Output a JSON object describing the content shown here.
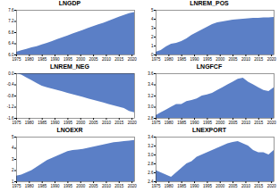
{
  "chart_data": [
    {
      "type": "area",
      "title": "LNGDP",
      "color": "#5b7fc6",
      "x": [
        1975,
        1977,
        1979,
        1981,
        1983,
        1985,
        1987,
        1989,
        1991,
        1993,
        1995,
        1997,
        1999,
        2001,
        2003,
        2005,
        2007,
        2009,
        2011,
        2013,
        2015,
        2017,
        2019,
        2021
      ],
      "values": [
        6.1,
        6.15,
        6.2,
        6.26,
        6.3,
        6.36,
        6.42,
        6.48,
        6.55,
        6.62,
        6.68,
        6.75,
        6.82,
        6.88,
        6.95,
        7.02,
        7.08,
        7.14,
        7.21,
        7.28,
        7.35,
        7.42,
        7.48,
        7.52
      ],
      "xlim": [
        1975,
        2021
      ],
      "xticks": [
        1975,
        1980,
        1985,
        1990,
        1995,
        2000,
        2005,
        2010,
        2015,
        2020
      ],
      "ylim": [
        6.0,
        7.6
      ],
      "yticks": [
        {
          "value": 6,
          "label": "6.0"
        },
        6.4,
        6.8,
        7.2,
        7.6
      ]
    },
    {
      "type": "area",
      "title": "LNREM_POS",
      "color": "#5b7fc6",
      "x": [
        1975,
        1977,
        1979,
        1981,
        1983,
        1985,
        1987,
        1989,
        1991,
        1993,
        1995,
        1997,
        1999,
        2001,
        2003,
        2005,
        2007,
        2009,
        2011,
        2013,
        2015,
        2017,
        2019,
        2021
      ],
      "values": [
        0.3,
        0.5,
        0.9,
        1.2,
        1.3,
        1.5,
        1.8,
        2.2,
        2.5,
        2.8,
        3.1,
        3.4,
        3.6,
        3.7,
        3.8,
        3.9,
        3.95,
        4.0,
        4.05,
        4.1,
        4.1,
        4.15,
        4.15,
        4.2
      ],
      "xlim": [
        1975,
        2021
      ],
      "xticks": [
        1975,
        1980,
        1985,
        1990,
        1995,
        2000,
        2005,
        2010,
        2015,
        2020
      ],
      "ylim": [
        0,
        5
      ],
      "yticks": [
        0,
        1,
        2,
        3,
        4,
        5
      ]
    },
    {
      "type": "area",
      "title": "LNREM_NEG",
      "color": "#5b7fc6",
      "x": [
        1975,
        1977,
        1979,
        1981,
        1983,
        1985,
        1987,
        1989,
        1991,
        1993,
        1995,
        1997,
        1999,
        2001,
        2003,
        2005,
        2007,
        2009,
        2011,
        2013,
        2015,
        2017,
        2019,
        2021
      ],
      "values": [
        0,
        -0.05,
        -0.15,
        -0.25,
        -0.35,
        -0.45,
        -0.5,
        -0.55,
        -0.6,
        -0.65,
        -0.7,
        -0.75,
        -0.8,
        -0.85,
        -0.9,
        -0.95,
        -1.0,
        -1.05,
        -1.1,
        -1.15,
        -1.2,
        -1.25,
        -1.35,
        -1.4
      ],
      "xlim": [
        1975,
        2021
      ],
      "xticks": [
        1975,
        1980,
        1985,
        1990,
        1995,
        2000,
        2005,
        2010,
        2015,
        2020
      ],
      "ylim": [
        -1.6,
        0
      ],
      "yticks": [
        -1.6,
        -1.2,
        -0.8,
        -0.4,
        {
          "value": 0,
          "label": "0.0"
        }
      ]
    },
    {
      "type": "area",
      "title": "LNGFCF",
      "color": "#5b7fc6",
      "x": [
        1975,
        1977,
        1979,
        1981,
        1983,
        1985,
        1987,
        1989,
        1991,
        1993,
        1995,
        1997,
        1999,
        2001,
        2003,
        2005,
        2007,
        2009,
        2011,
        2013,
        2015,
        2017,
        2019,
        2021
      ],
      "values": [
        2.85,
        2.9,
        2.95,
        3.0,
        3.05,
        3.05,
        3.1,
        3.12,
        3.15,
        3.2,
        3.22,
        3.25,
        3.3,
        3.35,
        3.4,
        3.45,
        3.5,
        3.52,
        3.45,
        3.4,
        3.35,
        3.3,
        3.28,
        3.35
      ],
      "xlim": [
        1975,
        2021
      ],
      "xticks": [
        1975,
        1980,
        1985,
        1990,
        1995,
        2000,
        2005,
        2010,
        2015,
        2020
      ],
      "ylim": [
        2.8,
        3.6
      ],
      "yticks": [
        2.8,
        {
          "value": 3,
          "label": "3.0"
        },
        3.2,
        3.4,
        3.6
      ]
    },
    {
      "type": "area",
      "title": "LNOEXR",
      "color": "#5b7fc6",
      "x": [
        1975,
        1977,
        1979,
        1981,
        1983,
        1985,
        1987,
        1989,
        1991,
        1993,
        1995,
        1997,
        1999,
        2001,
        2003,
        2005,
        2007,
        2009,
        2011,
        2013,
        2015,
        2017,
        2019,
        2021
      ],
      "values": [
        1.5,
        1.6,
        1.8,
        2.0,
        2.3,
        2.6,
        2.9,
        3.1,
        3.3,
        3.5,
        3.7,
        3.8,
        3.85,
        3.9,
        4.0,
        4.1,
        4.2,
        4.3,
        4.4,
        4.5,
        4.55,
        4.6,
        4.65,
        4.7
      ],
      "xlim": [
        1975,
        2021
      ],
      "xticks": [
        1975,
        1980,
        1985,
        1990,
        1995,
        2000,
        2005,
        2010,
        2015,
        2020
      ],
      "ylim": [
        1,
        5
      ],
      "yticks": [
        1,
        2,
        3,
        4,
        5
      ]
    },
    {
      "type": "area",
      "title": "LNEXPORT",
      "color": "#5b7fc6",
      "x": [
        1975,
        1977,
        1979,
        1981,
        1983,
        1985,
        1987,
        1989,
        1991,
        1993,
        1995,
        1997,
        1999,
        2001,
        2003,
        2005,
        2007,
        2009,
        2011,
        2013,
        2015,
        2017,
        2019,
        2021
      ],
      "values": [
        2.65,
        2.6,
        2.55,
        2.5,
        2.6,
        2.7,
        2.8,
        2.85,
        2.95,
        3.0,
        3.05,
        3.1,
        3.15,
        3.2,
        3.25,
        3.28,
        3.3,
        3.25,
        3.2,
        3.1,
        3.05,
        3.05,
        3.0,
        3.1
      ],
      "xlim": [
        1975,
        2021
      ],
      "xticks": [
        1975,
        1980,
        1985,
        1990,
        1995,
        2000,
        2005,
        2010,
        2015,
        2020
      ],
      "ylim": [
        2.4,
        3.4
      ],
      "yticks": [
        2.4,
        2.6,
        2.8,
        {
          "value": 3,
          "label": "3.0"
        },
        3.2,
        3.4
      ]
    }
  ]
}
